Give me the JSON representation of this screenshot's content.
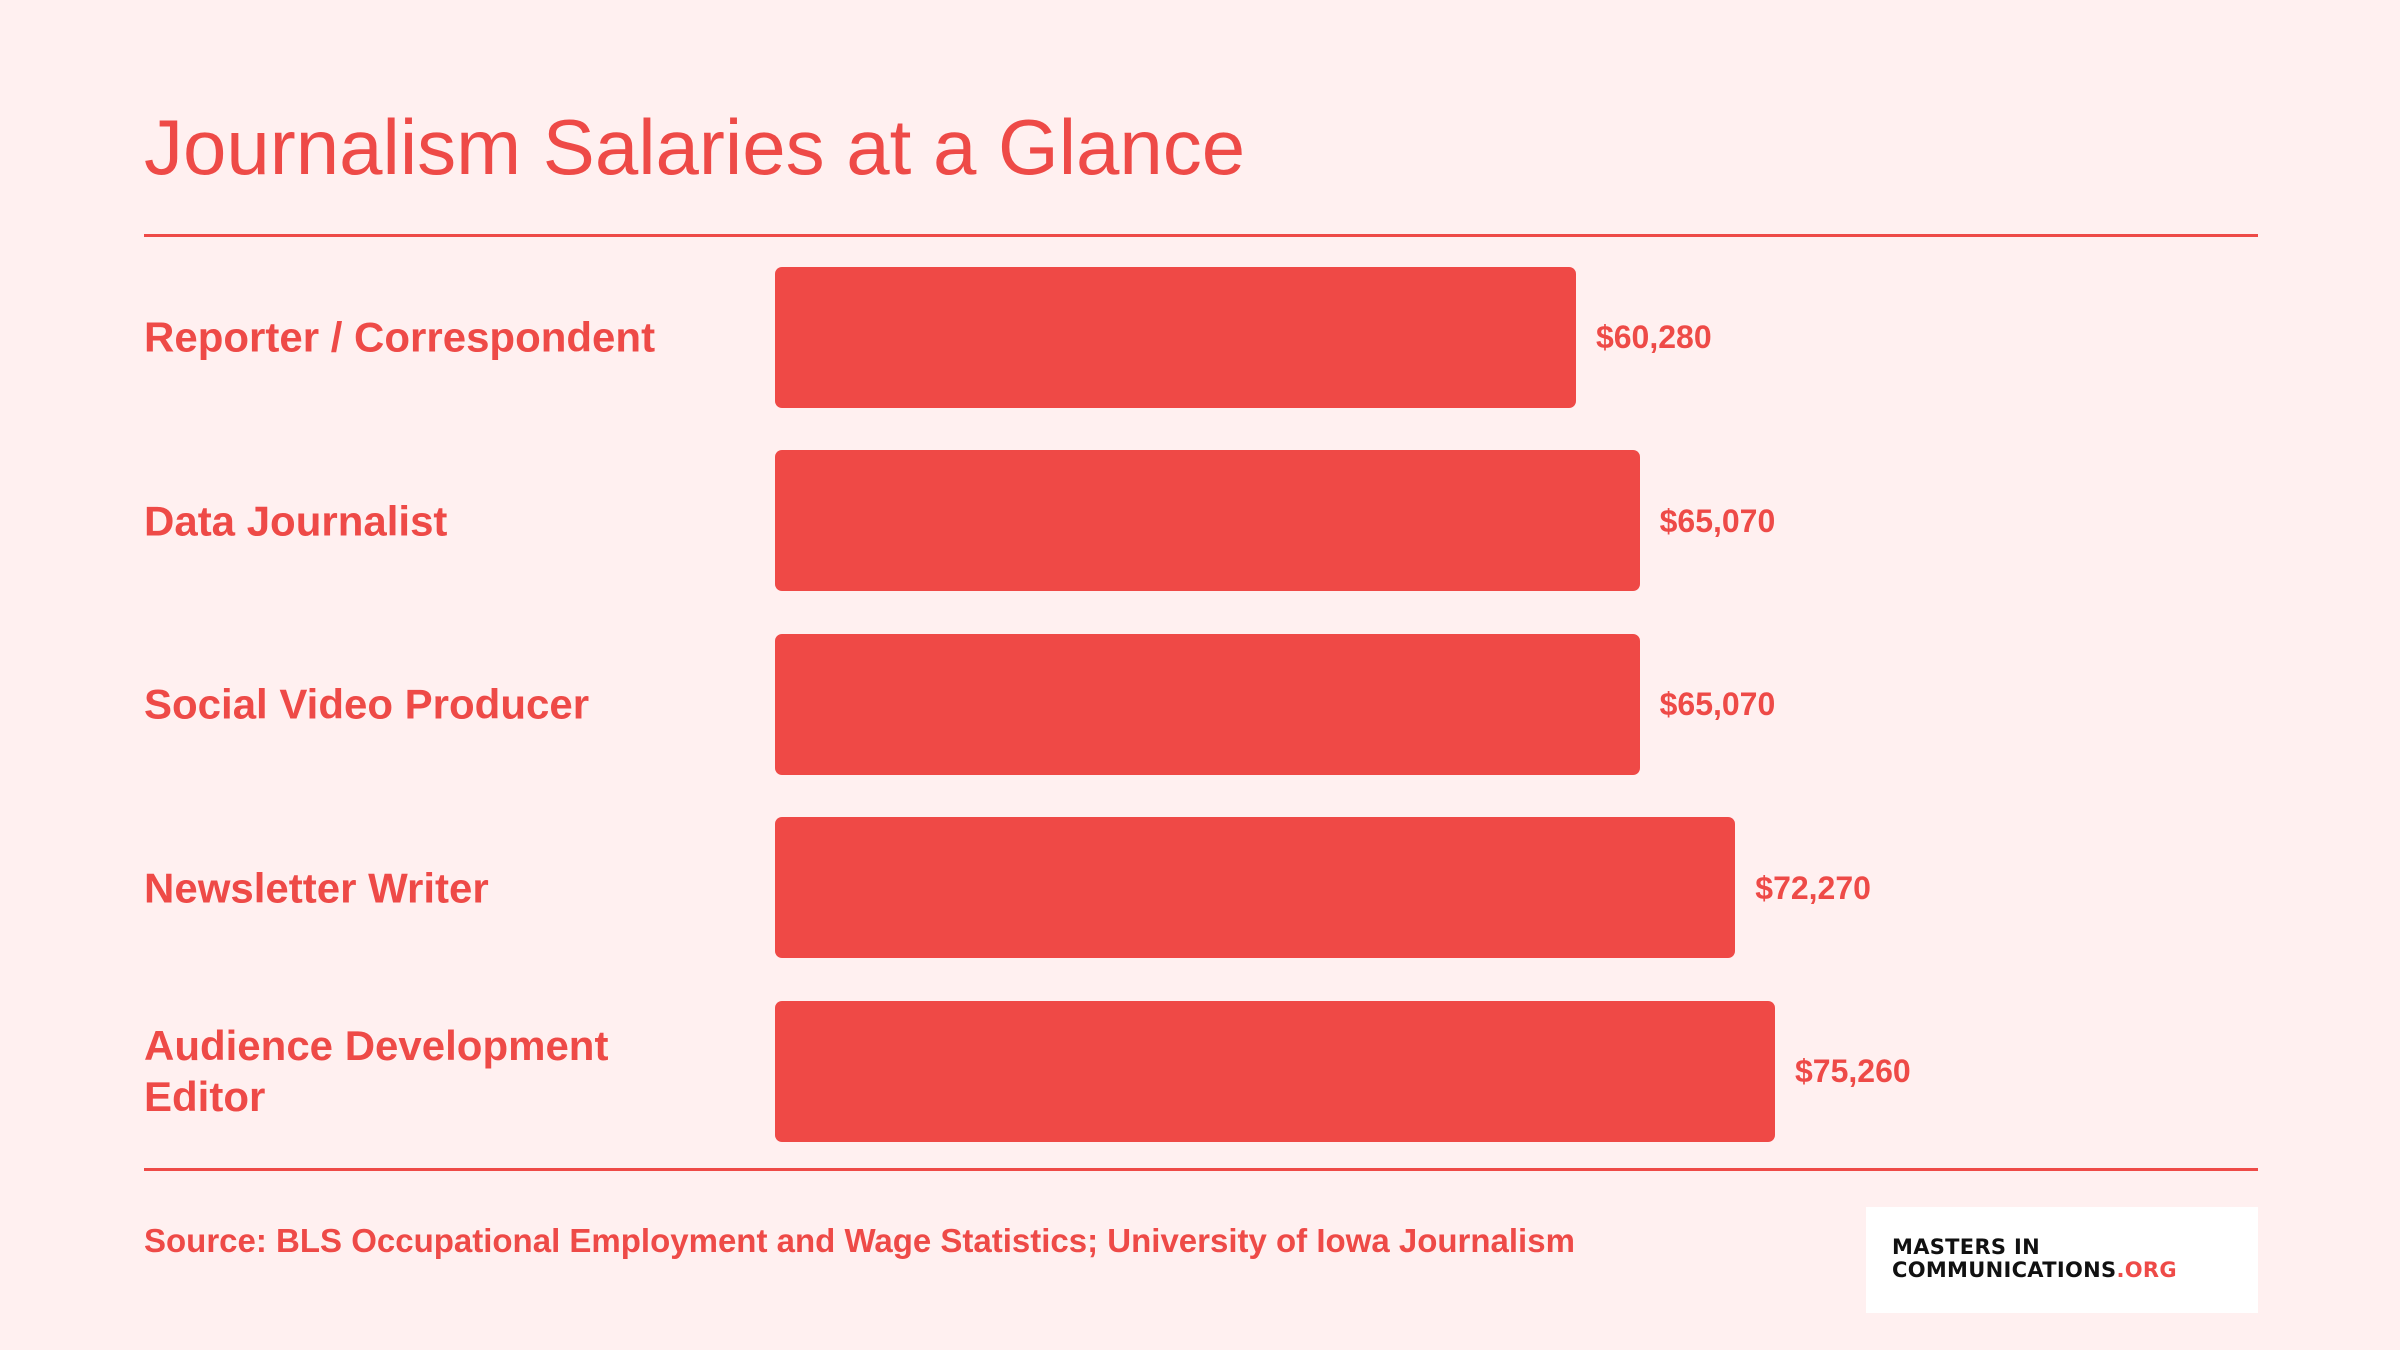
{
  "title": "Journalism Salaries at a Glance",
  "source": "Source: BLS Occupational Employment and Wage Statistics; University of Iowa Journalism",
  "logo": {
    "line1": "MASTERS IN",
    "line2": "COMMUNICATIONS",
    "line2_suffix": ".ORG"
  },
  "colors": {
    "background": "#fff0f0",
    "accent": "#ee4a47",
    "bar": "#ef4946"
  },
  "chart_data": {
    "type": "bar",
    "orientation": "horizontal",
    "title": "Journalism Salaries at a Glance",
    "categories": [
      "Reporter / Correspondent",
      "Data Journalist",
      "Social Video Producer",
      "Newsletter Writer",
      "Audience Development Editor"
    ],
    "values": [
      60280,
      65070,
      65070,
      72270,
      75260
    ],
    "value_labels": [
      "$60,280",
      "$65,070",
      "$65,070",
      "$72,270",
      "$75,260"
    ],
    "xlabel": "",
    "ylabel": "",
    "grid": false,
    "legend": "none"
  }
}
